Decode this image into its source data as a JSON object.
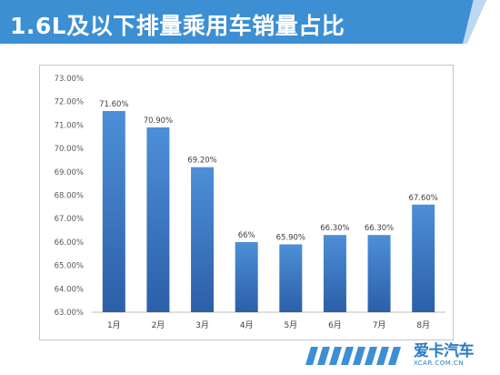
{
  "header": {
    "title": "1.6L及以下排量乘用车销量占比"
  },
  "chart_data": {
    "type": "bar",
    "categories": [
      "1月",
      "2月",
      "3月",
      "4月",
      "5月",
      "6月",
      "7月",
      "8月"
    ],
    "values": [
      71.6,
      70.9,
      69.2,
      66.0,
      65.9,
      66.3,
      66.3,
      67.6
    ],
    "value_labels": [
      "71.60%",
      "70.90%",
      "69.20%",
      "66%",
      "65.90%",
      "66.30%",
      "66.30%",
      "67.60%"
    ],
    "yticks": [
      "63.00%",
      "64.00%",
      "65.00%",
      "66.00%",
      "67.00%",
      "68.00%",
      "69.00%",
      "70.00%",
      "71.00%",
      "72.00%",
      "73.00%"
    ],
    "ylim": [
      63,
      73
    ],
    "grid": false,
    "bar_color_top": "#4d8fd8",
    "bar_color_bottom": "#2c5fa8"
  },
  "watermark": {
    "brand": "爱卡汽车",
    "domain": "XCAR.COM.CN"
  },
  "colors": {
    "header": "#3c8fd3",
    "header_accent": "#bcd9f1",
    "stripes": "#3c8fd3"
  }
}
